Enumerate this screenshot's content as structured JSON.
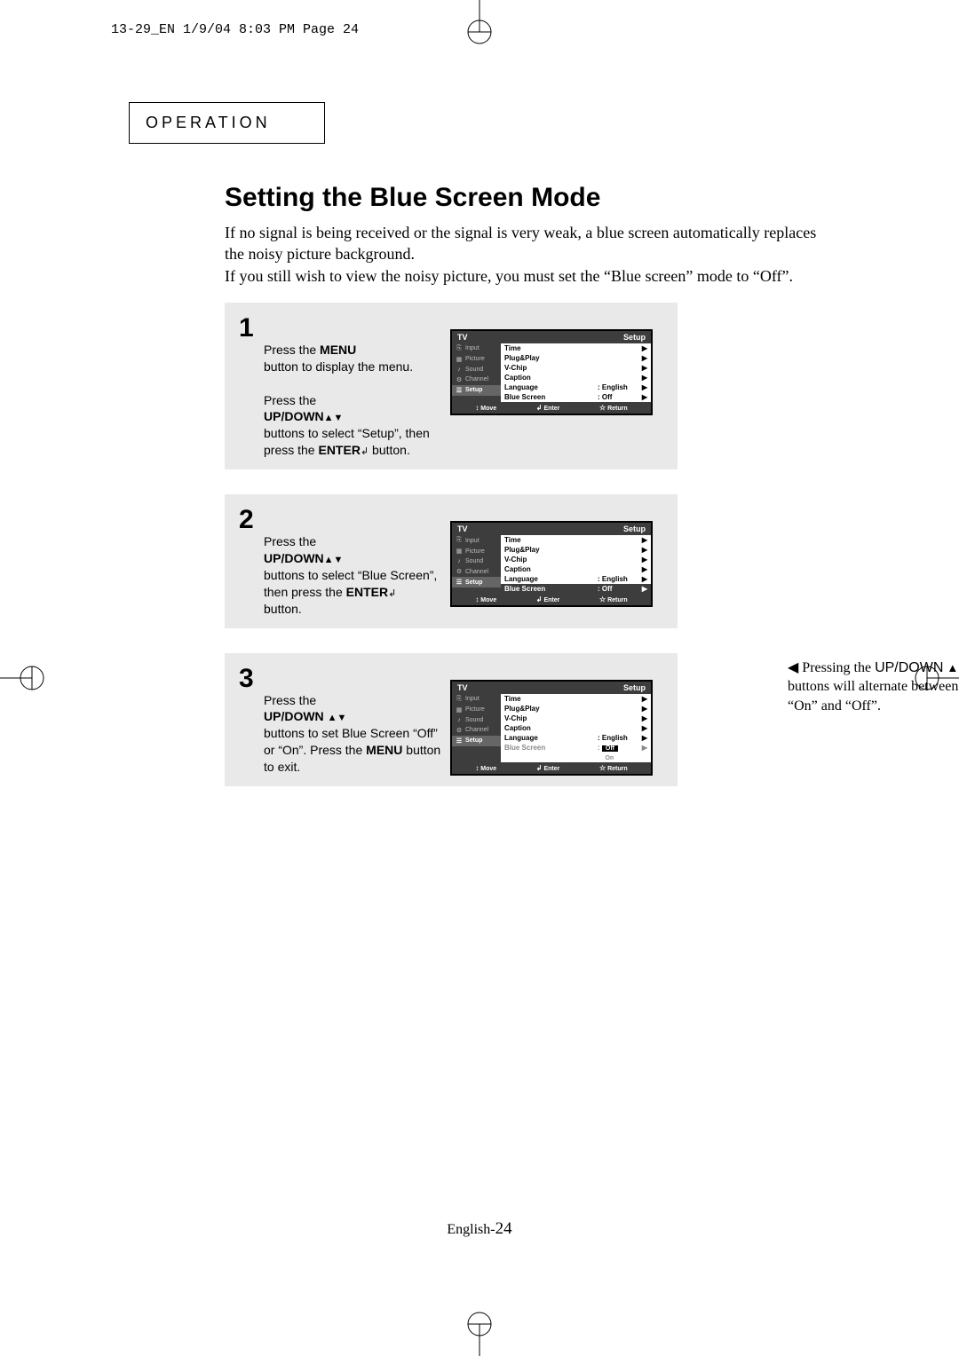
{
  "print_header": "13-29_EN  1/9/04 8:03 PM  Page 24",
  "section_label": "OPERATION",
  "title": "Setting the Blue Screen Mode",
  "intro1": "If no signal is being received or the signal is very weak, a blue screen automatically replaces the noisy picture background.",
  "intro2": "If you still wish to view the noisy picture, you must set the “Blue screen” mode to “Off”.",
  "tv": {
    "hdr_left": "TV",
    "hdr_right": "Setup",
    "side": [
      "Input",
      "Picture",
      "Sound",
      "Channel",
      "Setup"
    ],
    "side_icons": [
      "⎘",
      "▦",
      "♪",
      "⚙",
      "☰"
    ],
    "ftr_move": "Move",
    "ftr_enter": "Enter",
    "ftr_return": "Return",
    "items": [
      {
        "lbl": "Time",
        "val": "",
        "arr": "▶"
      },
      {
        "lbl": "Plug&Play",
        "val": "",
        "arr": "▶"
      },
      {
        "lbl": "V-Chip",
        "val": "",
        "arr": "▶"
      },
      {
        "lbl": "Caption",
        "val": "",
        "arr": "▶"
      },
      {
        "lbl": "Language",
        "val": ":  English",
        "arr": "▶"
      },
      {
        "lbl": "Blue Screen",
        "val": ":  Off",
        "arr": "▶"
      }
    ],
    "opt_off": "Off",
    "opt_on": "On"
  },
  "steps": {
    "s1": {
      "num": "1",
      "l1a": "Press the ",
      "l1b": "MENU",
      "l2": "button to display the menu.",
      "l3": "Press the",
      "l4": "UP/DOWN",
      "l5": "buttons to select “Setup”, then press the ",
      "l6": "ENTER",
      "l7": " button."
    },
    "s2": {
      "num": "2",
      "l1": "Press the",
      "l2": "UP/DOWN",
      "l3": "buttons to select “Blue Screen”, then press the ",
      "l4": "ENTER",
      "l5": " button."
    },
    "s3": {
      "num": "3",
      "l1": "Press the",
      "l2": "UP/DOWN",
      "l3": "buttons to set Blue Screen “Off” or “On”. Press the ",
      "l4": "MENU",
      "l5": " button to exit."
    }
  },
  "note_pre": "◀ Pressing the ",
  "note_updown": "UP/DOWN",
  "note_post": " buttons will alternate between “On” and “Off”.",
  "footer_lang": "English-",
  "footer_num": "24",
  "glyph_updown": "▲▼",
  "glyph_enter": "↲",
  "glyph_move_ic": "↕",
  "glyph_enter_ic": "↲",
  "glyph_return_ic": "☆"
}
